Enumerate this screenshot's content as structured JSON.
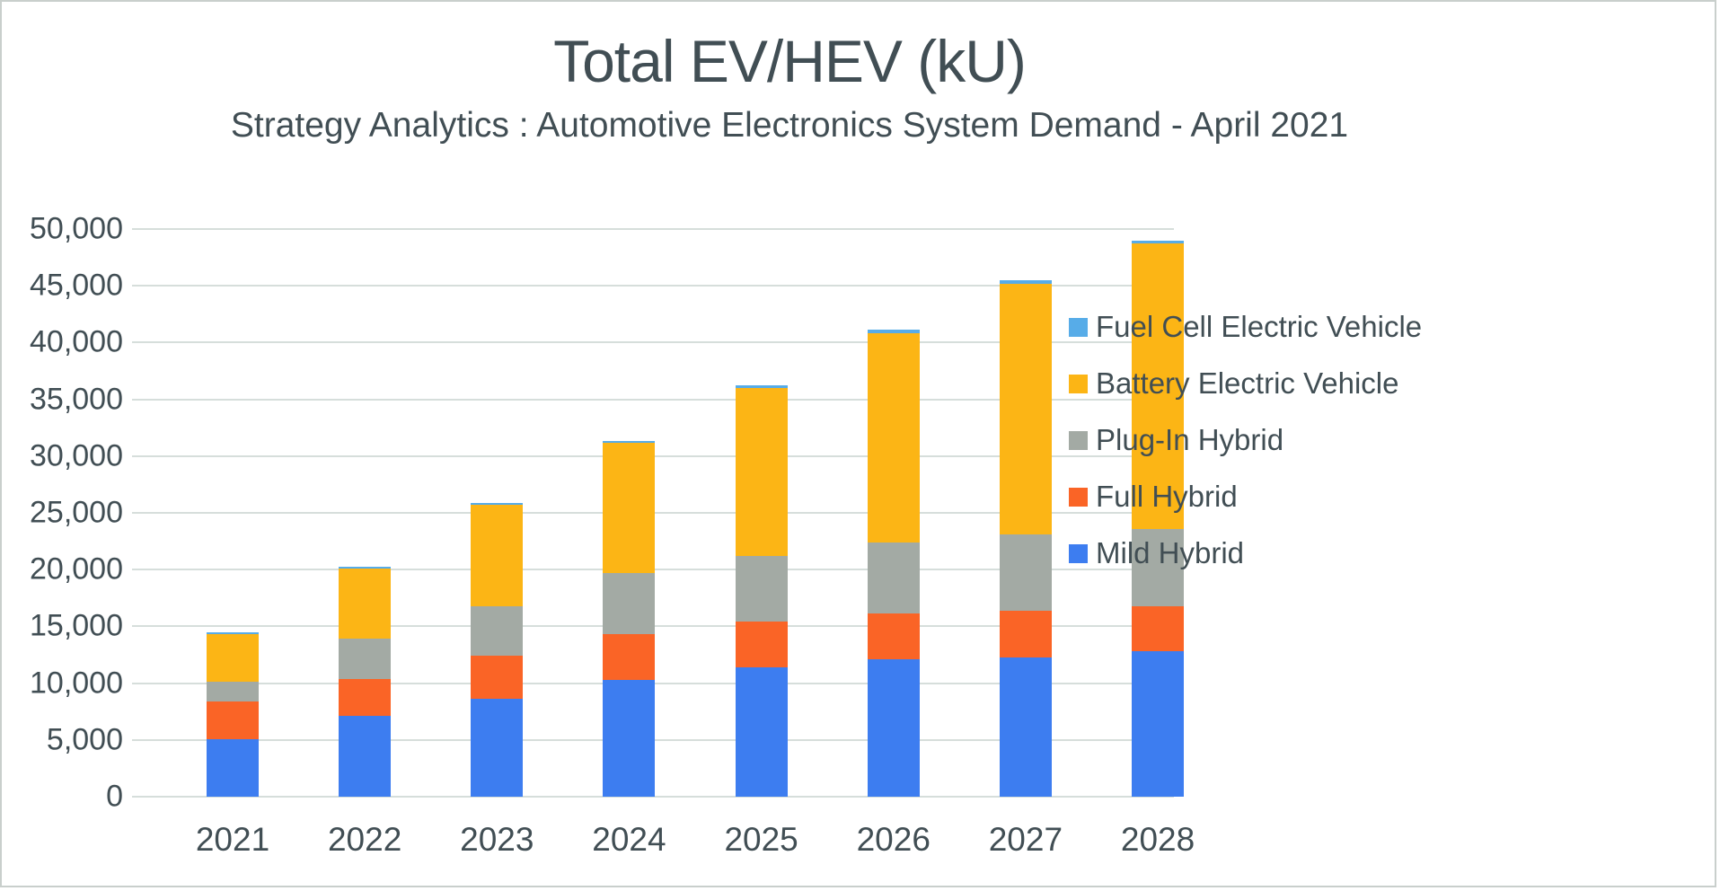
{
  "title": "Total EV/HEV (kU)",
  "subtitle": "Strategy Analytics : Automotive Electronics System Demand - April 2021",
  "colors": {
    "mild_hybrid": "#3d7df0",
    "full_hybrid": "#fa6426",
    "plug_in_hybrid": "#a3aaa4",
    "battery_electric": "#fcb515",
    "fuel_cell": "#57ace8",
    "text": "#414e54",
    "gridline": "#d6dedb"
  },
  "chart_data": {
    "type": "bar",
    "stacked": true,
    "grid": true,
    "legend_position": "right",
    "title": "Total EV/HEV (kU)",
    "subtitle": "Strategy Analytics : Automotive Electronics System Demand - April 2021",
    "xlabel": "",
    "ylabel": "",
    "ylim": [
      0,
      50000
    ],
    "y_tick_step": 5000,
    "y_ticks": [
      "50,000",
      "45,000",
      "40,000",
      "35,000",
      "30,000",
      "25,000",
      "20,000",
      "15,000",
      "10,000",
      "5,000",
      "0"
    ],
    "categories": [
      "2021",
      "2022",
      "2023",
      "2024",
      "2025",
      "2026",
      "2027",
      "2028"
    ],
    "series": [
      {
        "name": "Mild Hybrid",
        "color": "#3d7df0",
        "values": [
          5100,
          7100,
          8600,
          10300,
          11400,
          12100,
          12300,
          12800
        ]
      },
      {
        "name": "Full Hybrid",
        "color": "#fa6426",
        "values": [
          3300,
          3300,
          3800,
          4000,
          4000,
          4000,
          4100,
          4000
        ]
      },
      {
        "name": "Plug-In Hybrid",
        "color": "#a3aaa4",
        "values": [
          1700,
          3500,
          4400,
          5400,
          5800,
          6300,
          6700,
          6800
        ]
      },
      {
        "name": "Battery Electric Vehicle",
        "color": "#fcb515",
        "values": [
          4200,
          6200,
          8900,
          11500,
          14800,
          18400,
          22100,
          25100
        ]
      },
      {
        "name": "Fuel Cell Electric Vehicle",
        "color": "#57ace8",
        "values": [
          50,
          50,
          100,
          100,
          200,
          300,
          300,
          300
        ]
      }
    ],
    "totals": [
      14350,
      20150,
      25800,
      31300,
      36200,
      41100,
      45500,
      49000
    ],
    "legend_order_top_to_bottom": [
      "Fuel Cell Electric Vehicle",
      "Battery Electric Vehicle",
      "Plug-In Hybrid",
      "Full Hybrid",
      "Mild Hybrid"
    ]
  }
}
